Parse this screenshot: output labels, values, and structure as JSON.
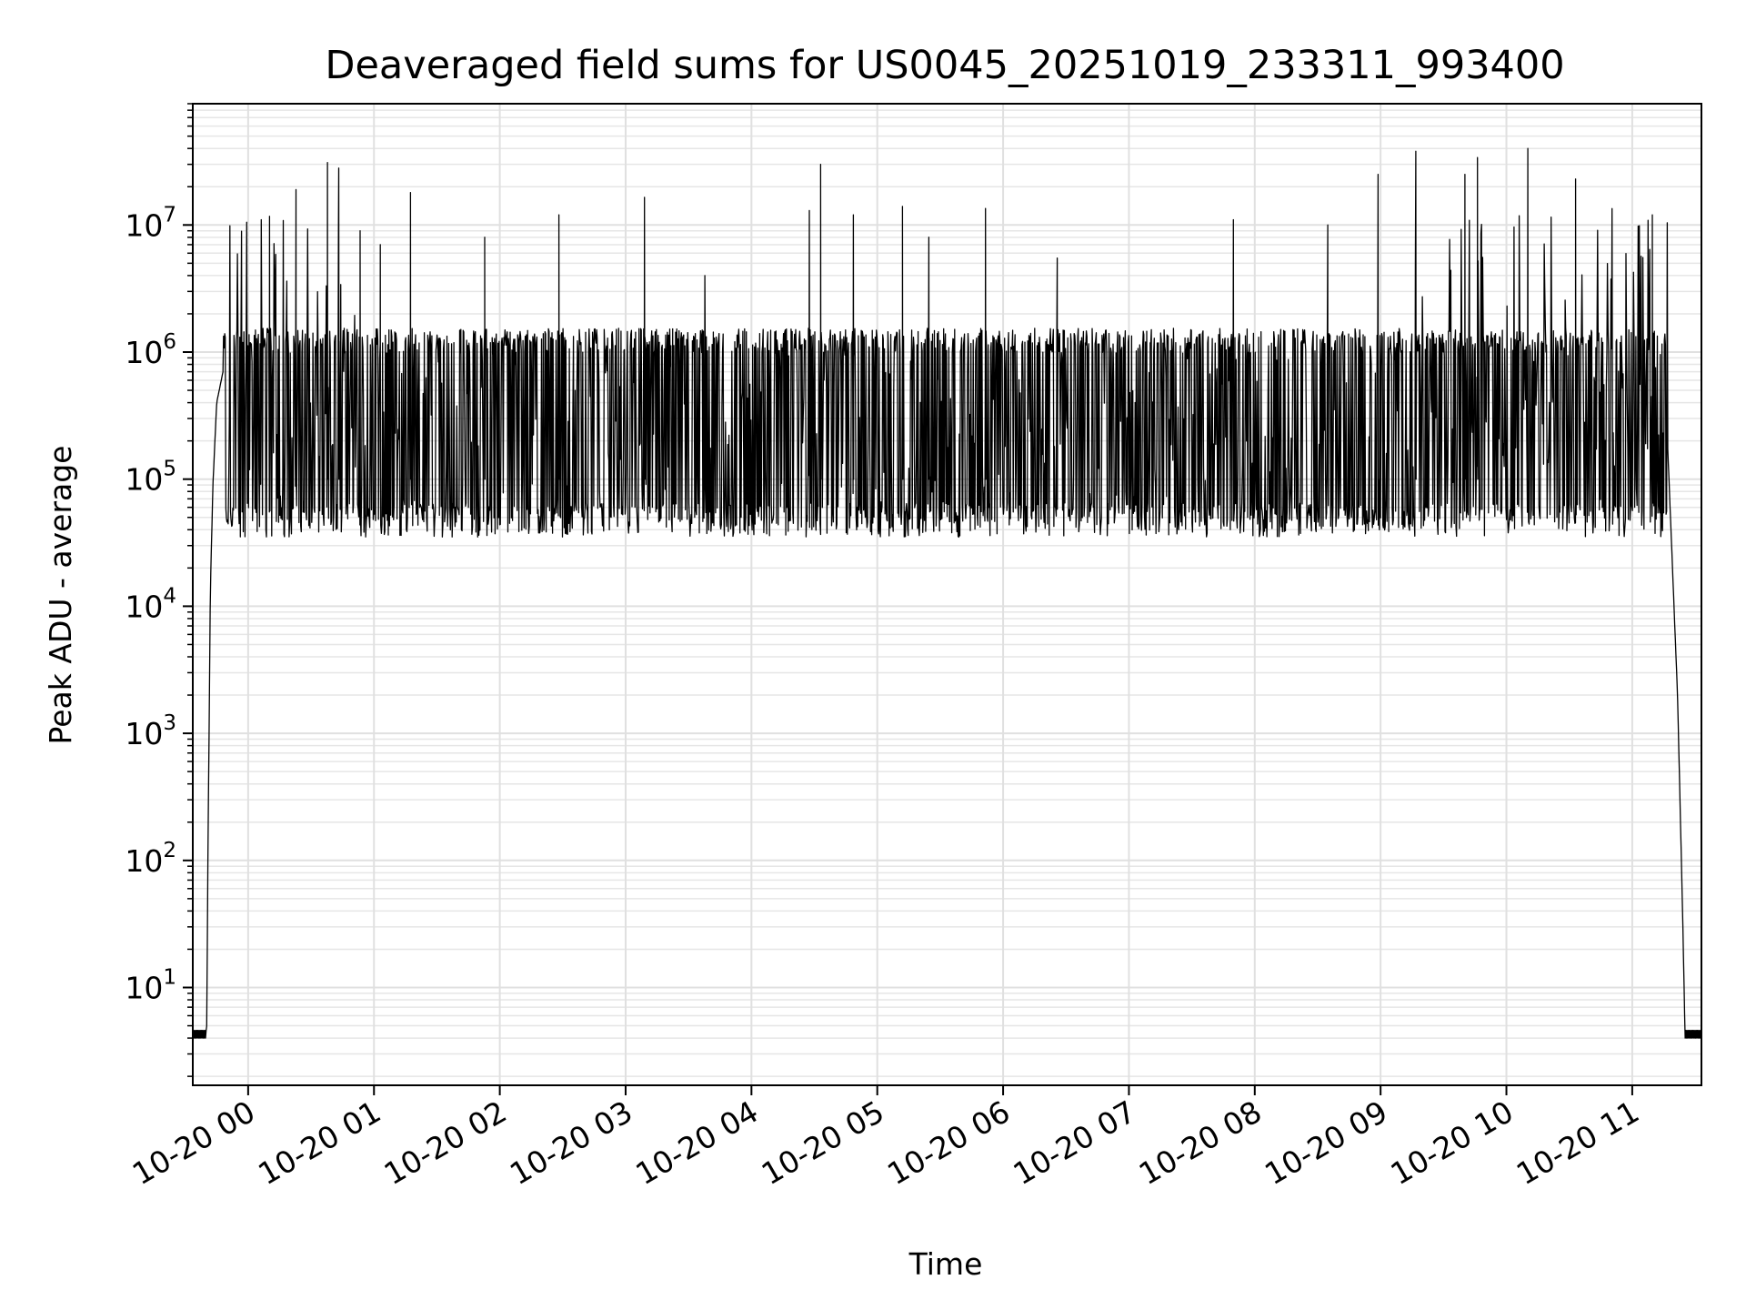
{
  "chart_data": {
    "type": "line",
    "title": "Deaveraged field sums for US0045_20251019_233311_993400",
    "xlabel": "Time",
    "ylabel": "Peak ADU - average",
    "yscale": "log",
    "ylim": [
      1.7,
      90000000
    ],
    "xlim_hours": [
      -0.44,
      11.55
    ],
    "grid": true,
    "x_tick_labels": [
      "10-20 00",
      "10-20 01",
      "10-20 02",
      "10-20 03",
      "10-20 04",
      "10-20 05",
      "10-20 06",
      "10-20 07",
      "10-20 08",
      "10-20 09",
      "10-20 10",
      "10-20 11"
    ],
    "x_tick_hours": [
      0,
      1,
      2,
      3,
      4,
      5,
      6,
      7,
      8,
      9,
      10,
      11
    ],
    "y_tick_values": [
      10,
      100,
      1000,
      10000,
      100000,
      1000000,
      10000000
    ],
    "y_tick_exponents": [
      "1",
      "2",
      "3",
      "4",
      "5",
      "6",
      "7"
    ],
    "y_tick_base": "10",
    "series": [
      {
        "name": "Deaveraged field sum",
        "color": "#000000",
        "x_hours": [
          -0.44,
          -0.33,
          -0.32,
          -0.3,
          -0.28,
          -0.25,
          -0.2,
          -0.1,
          -0.05,
          0.0,
          0.1,
          0.3,
          0.6,
          1.0,
          1.5,
          2.0,
          2.5,
          3.0,
          3.5,
          4.0,
          4.5,
          5.0,
          5.5,
          6.0,
          6.5,
          7.0,
          7.5,
          8.0,
          8.5,
          9.0,
          9.5,
          10.0,
          10.5,
          11.0,
          11.2,
          11.28,
          11.36,
          11.4,
          11.42,
          11.55
        ],
        "baseline": [
          4,
          4,
          100,
          14000,
          90000,
          400000,
          700000,
          900000,
          800000,
          700000,
          500000,
          300000,
          300000,
          250000,
          200000,
          150000,
          100000,
          80000,
          80000,
          90000,
          80000,
          70000,
          65000,
          60000,
          55000,
          55000,
          55000,
          55000,
          60000,
          100000,
          150000,
          200000,
          250000,
          400000,
          1200000,
          200000,
          2000,
          40,
          4,
          4
        ],
        "floor_level": 50000,
        "plateau_level": 1400000,
        "spikes": [
          {
            "x_hours": 0.17,
            "value": 11700000
          },
          {
            "x_hours": 0.38,
            "value": 19000000
          },
          {
            "x_hours": 0.63,
            "value": 31000000
          },
          {
            "x_hours": 0.72,
            "value": 28000000
          },
          {
            "x_hours": 0.89,
            "value": 9000000
          },
          {
            "x_hours": 1.05,
            "value": 7000000
          },
          {
            "x_hours": 1.29,
            "value": 18000000
          },
          {
            "x_hours": 1.88,
            "value": 8000000
          },
          {
            "x_hours": 2.47,
            "value": 12000000
          },
          {
            "x_hours": 3.15,
            "value": 16500000
          },
          {
            "x_hours": 3.63,
            "value": 4000000
          },
          {
            "x_hours": 4.46,
            "value": 13000000
          },
          {
            "x_hours": 4.55,
            "value": 30000000
          },
          {
            "x_hours": 4.81,
            "value": 12000000
          },
          {
            "x_hours": 5.2,
            "value": 14000000
          },
          {
            "x_hours": 5.41,
            "value": 8000000
          },
          {
            "x_hours": 5.86,
            "value": 13500000
          },
          {
            "x_hours": 6.43,
            "value": 5500000
          },
          {
            "x_hours": 7.83,
            "value": 11000000
          },
          {
            "x_hours": 8.58,
            "value": 10000000
          },
          {
            "x_hours": 8.98,
            "value": 25000000
          },
          {
            "x_hours": 9.28,
            "value": 38000000
          },
          {
            "x_hours": 9.67,
            "value": 25000000
          },
          {
            "x_hours": 9.77,
            "value": 34000000
          },
          {
            "x_hours": 10.17,
            "value": 40000000
          },
          {
            "x_hours": 10.55,
            "value": 23000000
          },
          {
            "x_hours": 11.16,
            "value": 12000000
          }
        ]
      }
    ]
  }
}
